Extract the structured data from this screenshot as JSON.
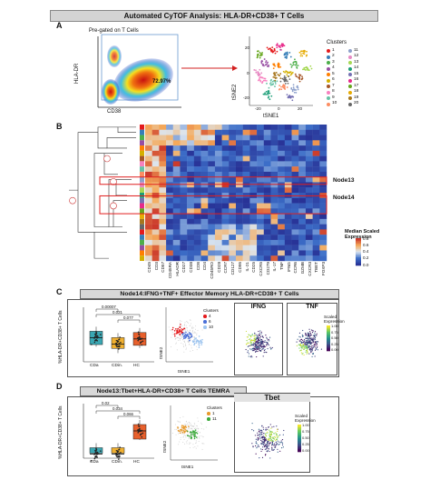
{
  "title": "Automated CyTOF Analysis: HLA-DR+CD38+ T Cells",
  "panel_labels": {
    "a": "A",
    "b": "B",
    "c": "C",
    "d": "D"
  },
  "panel_a": {
    "gate_note": "Pre-gated on T Cells",
    "gate_percent": "72.97%",
    "y_label": "HLA-DR",
    "x_label": "CD38",
    "tsne_y": "tSNE2",
    "tsne_x": "tSNE1",
    "tsne_ticks_x": [
      "-20",
      "0",
      "20"
    ],
    "tsne_ticks_y": [
      "20",
      "0",
      "-20"
    ],
    "legend_title": "Clusters",
    "clusters": [
      "1",
      "2",
      "3",
      "4",
      "5",
      "6",
      "7",
      "8",
      "9",
      "10",
      "11",
      "12",
      "13",
      "14",
      "15",
      "16",
      "17",
      "18",
      "19",
      "20"
    ],
    "cluster_colors": [
      "#e41a1c",
      "#377eb8",
      "#4daf4a",
      "#984ea3",
      "#ff7f00",
      "#d4b000",
      "#a65628",
      "#f781bf",
      "#66c2a5",
      "#fc8d62",
      "#8da0cb",
      "#e78ac3",
      "#a6d854",
      "#1b9e77",
      "#7570b3",
      "#e7298a",
      "#66a61e",
      "#e6ab02",
      "#a6761d",
      "#666666"
    ]
  },
  "panel_b": {
    "columns": [
      "CD45",
      "CD3",
      "CD57",
      "CD45RA",
      "HLADR",
      "CD27",
      "CD38",
      "CD8",
      "CD4",
      "CD45RO",
      "CD28",
      "CCR7",
      "CD127",
      "CD95",
      "IL-21",
      "CD25",
      "CXCR5",
      "CD279",
      "IL-17",
      "TNF",
      "IFNG",
      "CCR6",
      "GZMB",
      "CXCR3",
      "TBET",
      "FOXP3"
    ],
    "row_labels": [
      "",
      "",
      "",
      "",
      "",
      "",
      "",
      "",
      "",
      "",
      "",
      "",
      "",
      "",
      "",
      "",
      "",
      "",
      "",
      "",
      "",
      "",
      "",
      "",
      "",
      ""
    ],
    "nodes": [
      "Node13",
      "Node14"
    ],
    "node_markers": [
      "13",
      "14"
    ],
    "legend_title": "Median Scaled Expression",
    "legend_ticks": [
      "0.8",
      "0.6",
      "0.4",
      "0.2",
      "0.0"
    ]
  },
  "panel_c": {
    "header": "Node14:IFNG+TNF+ Effector Memory HLA-DR+CD38+ T Cells",
    "y_label": "%HLA-DR+CD38+ T Cells",
    "groups": [
      "CDa",
      "CDin.",
      "HC"
    ],
    "pvalues": [
      "0.00007",
      "0.021",
      "0.077"
    ],
    "box_medians": [
      1.9,
      1.4,
      1.8
    ],
    "tsne_y": "tSNE2",
    "tsne_x": "tSNE1",
    "legend_title": "Clusters",
    "clusters": [
      "4",
      "6",
      "10"
    ],
    "cluster_colors": [
      "#e41a1c",
      "#4a6fd8",
      "#9ec5f0"
    ],
    "panels": [
      "IFNG",
      "TNF"
    ],
    "scale_title": "Scaled Expression",
    "scale_ticks": [
      "1.00",
      "0.75",
      "0.50",
      "0.25",
      "0.00"
    ]
  },
  "panel_d": {
    "header": "Node13:Tbet+HLA-DR+CD38+ T Cells TEMRA",
    "y_label": "%HLA-DR+CD38+ T Cells",
    "groups": [
      "CDa",
      "CDin.",
      "HC"
    ],
    "pvalues": [
      "0.02",
      "0.034",
      "0.066"
    ],
    "box_medians": [
      0.15,
      0.15,
      1.0
    ],
    "tsne_y": "tSNE2",
    "tsne_x": "tSNE1",
    "legend_title": "Clusters",
    "clusters": [
      "1",
      "11"
    ],
    "cluster_colors": [
      "#e89a2c",
      "#3aa93a"
    ],
    "panel": "Tbet",
    "scale_title": "Scaled Expression",
    "scale_ticks": [
      "1.00",
      "0.75",
      "0.50",
      "0.25",
      "0.00"
    ]
  }
}
